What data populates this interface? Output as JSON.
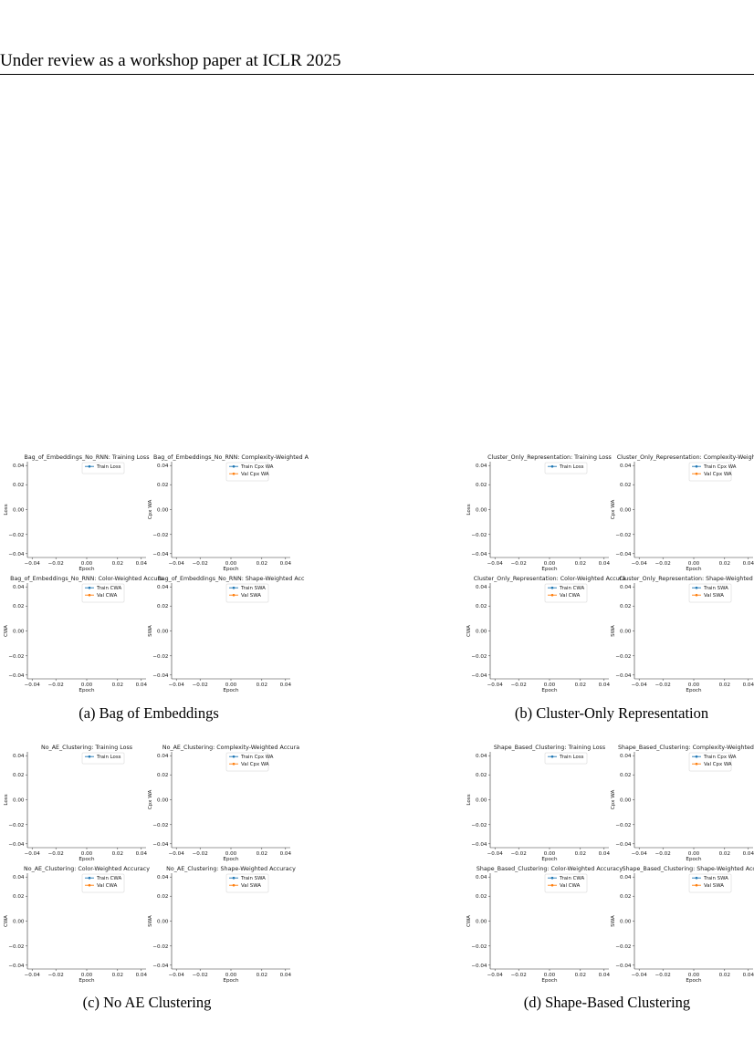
{
  "header": "Under review as a workshop paper at ICLR 2025",
  "colors": {
    "train": "#1f77b4",
    "val": "#ff7f0e"
  },
  "axes_common": {
    "xlabel": "Epoch",
    "x_ticks": [
      "−0.04",
      "−0.02",
      "0.00",
      "0.02",
      "0.04"
    ],
    "y_ticks": [
      "0.04",
      "0.02",
      "0.00",
      "−0.02",
      "−0.04"
    ]
  },
  "figures": [
    {
      "caption": "(a)  Bag of Embeddings",
      "panels": [
        {
          "title": "Bag_of_Embeddings_No_RNN: Training Loss",
          "ylabel": "Loss",
          "legend": [
            "Train Loss"
          ]
        },
        {
          "title": "Bag_of_Embeddings_No_RNN: Complexity-Weighted A",
          "ylabel": "Cpx WA",
          "legend": [
            "Train Cpx WA",
            "Val Cpx WA"
          ]
        },
        {
          "title": "Bag_of_Embeddings_No_RNN: Color-Weighted Accura",
          "ylabel": "CWA",
          "legend": [
            "Train CWA",
            "Val CWA"
          ]
        },
        {
          "title": "Bag_of_Embeddings_No_RNN: Shape-Weighted Acc",
          "ylabel": "SWA",
          "legend": [
            "Train SWA",
            "Val SWA"
          ]
        }
      ]
    },
    {
      "caption": "(b)  Cluster-Only Representation",
      "panels": [
        {
          "title": "Cluster_Only_Representation: Training Loss",
          "ylabel": "Loss",
          "legend": [
            "Train Loss"
          ]
        },
        {
          "title": "Cluster_Only_Representation: Complexity-Weighted A",
          "ylabel": "Cpx WA",
          "legend": [
            "Train Cpx WA",
            "Val Cpx WA"
          ]
        },
        {
          "title": "Cluster_Only_Representation: Color-Weighted Accura",
          "ylabel": "CWA",
          "legend": [
            "Train CWA",
            "Val CWA"
          ]
        },
        {
          "title": "Cluster_Only_Representation: Shape-Weighted Accu",
          "ylabel": "SWA",
          "legend": [
            "Train SWA",
            "Val SWA"
          ]
        }
      ]
    },
    {
      "caption": "(c)  No AE Clustering",
      "panels": [
        {
          "title": "No_AE_Clustering: Training Loss",
          "ylabel": "Loss",
          "legend": [
            "Train Loss"
          ]
        },
        {
          "title": "No_AE_Clustering: Complexity-Weighted Accura",
          "ylabel": "Cpx WA",
          "legend": [
            "Train Cpx WA",
            "Val Cpx WA"
          ]
        },
        {
          "title": "No_AE_Clustering: Color-Weighted Accuracy",
          "ylabel": "CWA",
          "legend": [
            "Train CWA",
            "Val CWA"
          ]
        },
        {
          "title": "No_AE_Clustering: Shape-Weighted Accuracy",
          "ylabel": "SWA",
          "legend": [
            "Train SWA",
            "Val SWA"
          ]
        }
      ]
    },
    {
      "caption": "(d)  Shape-Based Clustering",
      "panels": [
        {
          "title": "Shape_Based_Clustering: Training Loss",
          "ylabel": "Loss",
          "legend": [
            "Train Loss"
          ]
        },
        {
          "title": "Shape_Based_Clustering: Complexity-Weighted Accu",
          "ylabel": "Cpx WA",
          "legend": [
            "Train Cpx WA",
            "Val Cpx WA"
          ]
        },
        {
          "title": "Shape_Based_Clustering: Color-Weighted Accuracy",
          "ylabel": "CWA",
          "legend": [
            "Train CWA",
            "Val CWA"
          ]
        },
        {
          "title": "Shape_Based_Clustering: Shape-Weighted Accura",
          "ylabel": "SWA",
          "legend": [
            "Train SWA",
            "Val SWA"
          ]
        }
      ]
    }
  ],
  "chart_data": [
    {
      "type": "line",
      "title": "Bag_of_Embeddings_No_RNN: Training Loss",
      "xlabel": "Epoch",
      "ylabel": "Loss",
      "xlim": [
        -0.05,
        0.05
      ],
      "ylim": [
        -0.05,
        0.05
      ],
      "series": [
        {
          "name": "Train Loss",
          "x": [],
          "y": []
        }
      ]
    },
    {
      "type": "line",
      "title": "Bag_of_Embeddings_No_RNN: Complexity-Weighted A",
      "xlabel": "Epoch",
      "ylabel": "Cpx WA",
      "xlim": [
        -0.05,
        0.05
      ],
      "ylim": [
        -0.05,
        0.05
      ],
      "series": [
        {
          "name": "Train Cpx WA",
          "x": [],
          "y": []
        },
        {
          "name": "Val Cpx WA",
          "x": [],
          "y": []
        }
      ]
    },
    {
      "type": "line",
      "title": "Bag_of_Embeddings_No_RNN: Color-Weighted Accura",
      "xlabel": "Epoch",
      "ylabel": "CWA",
      "xlim": [
        -0.05,
        0.05
      ],
      "ylim": [
        -0.05,
        0.05
      ],
      "series": [
        {
          "name": "Train CWA",
          "x": [],
          "y": []
        },
        {
          "name": "Val CWA",
          "x": [],
          "y": []
        }
      ]
    },
    {
      "type": "line",
      "title": "Bag_of_Embeddings_No_RNN: Shape-Weighted Acc",
      "xlabel": "Epoch",
      "ylabel": "SWA",
      "xlim": [
        -0.05,
        0.05
      ],
      "ylim": [
        -0.05,
        0.05
      ],
      "series": [
        {
          "name": "Train SWA",
          "x": [],
          "y": []
        },
        {
          "name": "Val SWA",
          "x": [],
          "y": []
        }
      ]
    },
    {
      "type": "line",
      "title": "Cluster_Only_Representation: Training Loss",
      "xlabel": "Epoch",
      "ylabel": "Loss",
      "xlim": [
        -0.05,
        0.05
      ],
      "ylim": [
        -0.05,
        0.05
      ],
      "series": [
        {
          "name": "Train Loss",
          "x": [],
          "y": []
        }
      ]
    },
    {
      "type": "line",
      "title": "Cluster_Only_Representation: Complexity-Weighted A",
      "xlabel": "Epoch",
      "ylabel": "Cpx WA",
      "xlim": [
        -0.05,
        0.05
      ],
      "ylim": [
        -0.05,
        0.05
      ],
      "series": [
        {
          "name": "Train Cpx WA",
          "x": [],
          "y": []
        },
        {
          "name": "Val Cpx WA",
          "x": [],
          "y": []
        }
      ]
    },
    {
      "type": "line",
      "title": "Cluster_Only_Representation: Color-Weighted Accura",
      "xlabel": "Epoch",
      "ylabel": "CWA",
      "xlim": [
        -0.05,
        0.05
      ],
      "ylim": [
        -0.05,
        0.05
      ],
      "series": [
        {
          "name": "Train CWA",
          "x": [],
          "y": []
        },
        {
          "name": "Val CWA",
          "x": [],
          "y": []
        }
      ]
    },
    {
      "type": "line",
      "title": "Cluster_Only_Representation: Shape-Weighted Accu",
      "xlabel": "Epoch",
      "ylabel": "SWA",
      "xlim": [
        -0.05,
        0.05
      ],
      "ylim": [
        -0.05,
        0.05
      ],
      "series": [
        {
          "name": "Train SWA",
          "x": [],
          "y": []
        },
        {
          "name": "Val SWA",
          "x": [],
          "y": []
        }
      ]
    },
    {
      "type": "line",
      "title": "No_AE_Clustering: Training Loss",
      "xlabel": "Epoch",
      "ylabel": "Loss",
      "xlim": [
        -0.05,
        0.05
      ],
      "ylim": [
        -0.05,
        0.05
      ],
      "series": [
        {
          "name": "Train Loss",
          "x": [],
          "y": []
        }
      ]
    },
    {
      "type": "line",
      "title": "No_AE_Clustering: Complexity-Weighted Accura",
      "xlabel": "Epoch",
      "ylabel": "Cpx WA",
      "xlim": [
        -0.05,
        0.05
      ],
      "ylim": [
        -0.05,
        0.05
      ],
      "series": [
        {
          "name": "Train Cpx WA",
          "x": [],
          "y": []
        },
        {
          "name": "Val Cpx WA",
          "x": [],
          "y": []
        }
      ]
    },
    {
      "type": "line",
      "title": "No_AE_Clustering: Color-Weighted Accuracy",
      "xlabel": "Epoch",
      "ylabel": "CWA",
      "xlim": [
        -0.05,
        0.05
      ],
      "ylim": [
        -0.05,
        0.05
      ],
      "series": [
        {
          "name": "Train CWA",
          "x": [],
          "y": []
        },
        {
          "name": "Val CWA",
          "x": [],
          "y": []
        }
      ]
    },
    {
      "type": "line",
      "title": "No_AE_Clustering: Shape-Weighted Accuracy",
      "xlabel": "Epoch",
      "ylabel": "SWA",
      "xlim": [
        -0.05,
        0.05
      ],
      "ylim": [
        -0.05,
        0.05
      ],
      "series": [
        {
          "name": "Train SWA",
          "x": [],
          "y": []
        },
        {
          "name": "Val SWA",
          "x": [],
          "y": []
        }
      ]
    },
    {
      "type": "line",
      "title": "Shape_Based_Clustering: Training Loss",
      "xlabel": "Epoch",
      "ylabel": "Loss",
      "xlim": [
        -0.05,
        0.05
      ],
      "ylim": [
        -0.05,
        0.05
      ],
      "series": [
        {
          "name": "Train Loss",
          "x": [],
          "y": []
        }
      ]
    },
    {
      "type": "line",
      "title": "Shape_Based_Clustering: Complexity-Weighted Accu",
      "xlabel": "Epoch",
      "ylabel": "Cpx WA",
      "xlim": [
        -0.05,
        0.05
      ],
      "ylim": [
        -0.05,
        0.05
      ],
      "series": [
        {
          "name": "Train Cpx WA",
          "x": [],
          "y": []
        },
        {
          "name": "Val Cpx WA",
          "x": [],
          "y": []
        }
      ]
    },
    {
      "type": "line",
      "title": "Shape_Based_Clustering: Color-Weighted Accuracy",
      "xlabel": "Epoch",
      "ylabel": "CWA",
      "xlim": [
        -0.05,
        0.05
      ],
      "ylim": [
        -0.05,
        0.05
      ],
      "series": [
        {
          "name": "Train CWA",
          "x": [],
          "y": []
        },
        {
          "name": "Val CWA",
          "x": [],
          "y": []
        }
      ]
    },
    {
      "type": "line",
      "title": "Shape_Based_Clustering: Shape-Weighted Accura",
      "xlabel": "Epoch",
      "ylabel": "SWA",
      "xlim": [
        -0.05,
        0.05
      ],
      "ylim": [
        -0.05,
        0.05
      ],
      "series": [
        {
          "name": "Train SWA",
          "x": [],
          "y": []
        },
        {
          "name": "Val SWA",
          "x": [],
          "y": []
        }
      ]
    }
  ]
}
